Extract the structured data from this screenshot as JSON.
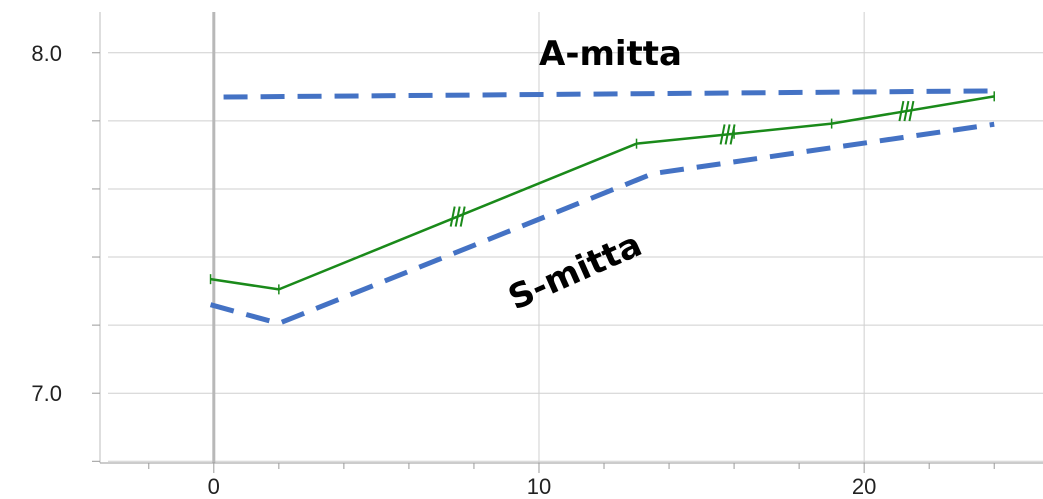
{
  "chart_data": {
    "type": "line",
    "xlabel": "",
    "ylabel": "",
    "xlim": [
      -3.5,
      25.5
    ],
    "ylim": [
      6.795,
      8.155
    ],
    "x_ticks_major": [
      0,
      10,
      20
    ],
    "x_tick_labels": [
      "0",
      "10",
      "20"
    ],
    "y_ticks_major": [
      7.0,
      8.0
    ],
    "y_tick_labels": [
      "7.0",
      "8.0"
    ],
    "y_ticks_minor": [
      6.8,
      7.2,
      7.4,
      7.6,
      7.8
    ],
    "grid": true,
    "series": [
      {
        "style": "solid",
        "color": "#1a8a1a",
        "x": [
          -0.1,
          2,
          13,
          16,
          19,
          24
        ],
        "y": [
          7.335,
          7.305,
          7.733,
          7.762,
          7.792,
          7.872
        ],
        "hatch_marks_x": [
          7.5,
          15.8,
          21.3
        ]
      },
      {
        "style": "dashed",
        "color": "#4472c4",
        "x": [
          -0.1,
          2,
          13.5,
          24
        ],
        "y": [
          7.26,
          7.205,
          7.645,
          7.79
        ]
      },
      {
        "style": "dashed",
        "color": "#4472c4",
        "x": [
          0.3,
          24
        ],
        "y": [
          7.87,
          7.888
        ]
      }
    ],
    "annotations": [
      {
        "text": "A-mitta",
        "x": 12.2,
        "y": 8.0,
        "rotation": 0
      },
      {
        "text": "S-mitta",
        "x": 11.1,
        "y": 7.36,
        "rotation": -24
      }
    ]
  }
}
